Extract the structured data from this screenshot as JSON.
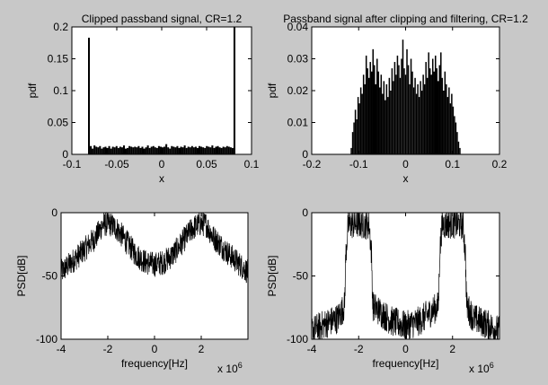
{
  "figure": {
    "background": "#c8c8c8",
    "axes_background": "#ffffff",
    "ink": "#000000"
  },
  "chart_data": [
    {
      "type": "bar",
      "title": "Clipped passband signal, CR=1.2",
      "xlabel": "x",
      "ylabel": "pdf",
      "xlim": [
        -0.1,
        0.1
      ],
      "ylim": [
        0,
        0.2
      ],
      "xticks": [
        -0.1,
        -0.05,
        0,
        0.05,
        0.1
      ],
      "xtick_labels": [
        "-0.1",
        "-0.05",
        "0",
        "0.05",
        "0.1"
      ],
      "yticks": [
        0,
        0.05,
        0.1,
        0.15,
        0.2
      ],
      "ytick_labels": [
        "0",
        "0.05",
        "0.1",
        "0.15",
        "0.2"
      ],
      "grid": false,
      "bin_range": [
        -0.082,
        0.082
      ],
      "values": [
        0.183,
        0.013,
        0.009,
        0.014,
        0.012,
        0.011,
        0.013,
        0.009,
        0.011,
        0.012,
        0.01,
        0.013,
        0.009,
        0.012,
        0.011,
        0.013,
        0.01,
        0.012,
        0.011,
        0.014,
        0.009,
        0.01,
        0.013,
        0.012,
        0.011,
        0.012,
        0.011,
        0.013,
        0.01,
        0.012,
        0.009,
        0.011,
        0.014,
        0.01,
        0.012,
        0.013,
        0.011,
        0.01,
        0.013,
        0.012,
        0.011,
        0.012,
        0.016,
        0.011,
        0.009,
        0.013,
        0.012,
        0.011,
        0.013,
        0.01,
        0.012,
        0.011,
        0.014,
        0.01,
        0.012,
        0.011,
        0.013,
        0.011,
        0.012,
        0.01,
        0.013,
        0.012,
        0.011,
        0.01,
        0.013,
        0.012,
        0.011,
        0.014,
        0.01,
        0.012,
        0.013,
        0.011,
        0.01,
        0.012,
        0.011,
        0.013,
        0.012,
        0.011,
        0.01,
        0.2
      ]
    },
    {
      "type": "bar",
      "title": "Passband signal after clipping and filtering, CR=1.2",
      "xlabel": "x",
      "ylabel": "pdf",
      "xlim": [
        -0.2,
        0.2
      ],
      "ylim": [
        0,
        0.04
      ],
      "xticks": [
        -0.2,
        -0.1,
        0,
        0.1,
        0.2
      ],
      "xtick_labels": [
        "-0.2",
        "-0.1",
        "0",
        "0.1",
        "0.2"
      ],
      "yticks": [
        0,
        0.01,
        0.02,
        0.03,
        0.04
      ],
      "ytick_labels": [
        "0",
        "0.01",
        "0.02",
        "0.03",
        "0.04"
      ],
      "grid": false,
      "bin_range": [
        -0.12,
        0.12
      ],
      "values": [
        0.0,
        0.002,
        0.007,
        0.01,
        0.014,
        0.011,
        0.018,
        0.016,
        0.021,
        0.019,
        0.025,
        0.022,
        0.031,
        0.027,
        0.024,
        0.029,
        0.026,
        0.033,
        0.028,
        0.022,
        0.03,
        0.026,
        0.021,
        0.025,
        0.019,
        0.023,
        0.017,
        0.022,
        0.018,
        0.024,
        0.02,
        0.027,
        0.023,
        0.029,
        0.025,
        0.031,
        0.028,
        0.024,
        0.03,
        0.036,
        0.027,
        0.025,
        0.033,
        0.028,
        0.022,
        0.03,
        0.026,
        0.021,
        0.024,
        0.019,
        0.022,
        0.018,
        0.023,
        0.02,
        0.025,
        0.022,
        0.029,
        0.024,
        0.032,
        0.027,
        0.025,
        0.03,
        0.026,
        0.031,
        0.027,
        0.023,
        0.028,
        0.032,
        0.024,
        0.02,
        0.026,
        0.022,
        0.018,
        0.021,
        0.016,
        0.019,
        0.015,
        0.012,
        0.01,
        0.007,
        0.004,
        0.002,
        0.0
      ]
    },
    {
      "type": "line",
      "title": "",
      "xlabel": "frequency[Hz]",
      "ylabel": "PSD[dB]",
      "x_multiplier": "x 10",
      "x_multiplier_exponent": "6",
      "xlim": [
        -4,
        4
      ],
      "ylim": [
        -100,
        0
      ],
      "xticks": [
        -4,
        -2,
        0,
        2
      ],
      "xtick_labels": [
        "-4",
        "-2",
        "0",
        "2"
      ],
      "yticks": [
        -100,
        -50,
        0
      ],
      "ytick_labels": [
        "-100",
        "-50",
        "0"
      ],
      "grid": false,
      "envelope": {
        "x": [
          -4.0,
          -3.6,
          -3.2,
          -2.8,
          -2.5,
          -2.2,
          -1.9,
          -1.6,
          -1.2,
          -0.8,
          -0.4,
          0.0,
          0.4,
          0.8,
          1.2,
          1.6,
          1.9,
          2.2,
          2.5,
          2.8,
          3.2,
          3.6,
          4.0
        ],
        "y": [
          -44,
          -37,
          -30,
          -22,
          -16,
          -6,
          -6,
          -10,
          -20,
          -30,
          -36,
          -38,
          -36,
          -30,
          -20,
          -10,
          -6,
          -6,
          -16,
          -22,
          -30,
          -37,
          -44
        ],
        "noise_db": 10
      }
    },
    {
      "type": "line",
      "title": "",
      "xlabel": "frequency[Hz]",
      "ylabel": "PSD[dB]",
      "x_multiplier": "x 10",
      "x_multiplier_exponent": "6",
      "xlim": [
        -4,
        4
      ],
      "ylim": [
        -100,
        0
      ],
      "xticks": [
        -4,
        -2,
        0,
        2
      ],
      "xtick_labels": [
        "-4",
        "-2",
        "0",
        "2"
      ],
      "yticks": [
        -100,
        -50,
        0
      ],
      "ytick_labels": [
        "-100",
        "-50",
        "0"
      ],
      "grid": false,
      "envelope": {
        "x": [
          -4.0,
          -3.4,
          -2.9,
          -2.6,
          -2.55,
          -2.45,
          -2.0,
          -1.55,
          -1.45,
          -1.4,
          -1.0,
          -0.6,
          0.0,
          0.6,
          1.0,
          1.4,
          1.45,
          1.55,
          2.0,
          2.45,
          2.55,
          2.6,
          2.9,
          3.4,
          4.0
        ],
        "y": [
          -90,
          -84,
          -80,
          -70,
          -30,
          -6,
          -5,
          -6,
          -30,
          -70,
          -76,
          -82,
          -86,
          -82,
          -76,
          -70,
          -30,
          -6,
          -5,
          -6,
          -30,
          -70,
          -80,
          -84,
          -90
        ],
        "noise_db": 12
      }
    }
  ]
}
